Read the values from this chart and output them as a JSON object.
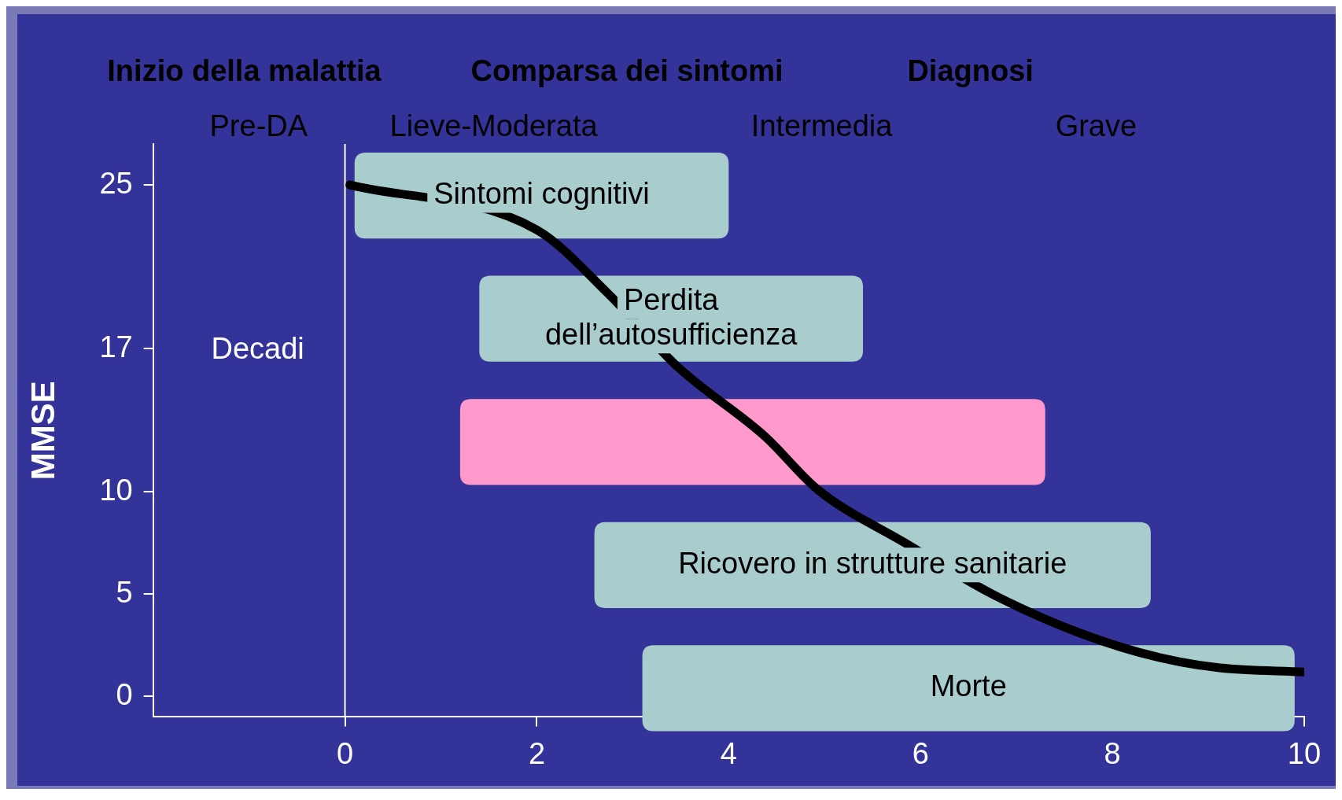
{
  "chart_data": {
    "type": "line",
    "ylabel": "MMSE",
    "xlim": [
      -2,
      10
    ],
    "xticks": [
      0,
      2,
      4,
      6,
      8,
      10
    ],
    "ylim": [
      -1,
      27
    ],
    "yticks": [
      0,
      5,
      10,
      17,
      25
    ],
    "grid": false,
    "legend": false,
    "marker": "none",
    "line_style": "solid",
    "series": [
      {
        "color": "#000000",
        "x": [
          0.05,
          2,
          2.74,
          3.47,
          4.38,
          4.93,
          5.84,
          6.75,
          7.66,
          8.49,
          9.12,
          10
        ],
        "values": [
          25,
          22.8,
          19.7,
          16.1,
          12.7,
          10.1,
          7.5,
          5,
          3.1,
          1.9,
          1.4,
          1.2
        ]
      }
    ],
    "ref_lines": [
      {
        "axis": "x",
        "value": 0,
        "color": "#ffffff"
      }
    ],
    "bands": [
      {
        "axis": "x",
        "from": 0.1,
        "to": 4,
        "label": "Sintomi cognitivi",
        "color": "#a9cccd"
      },
      {
        "axis": "x",
        "from": 1.4,
        "to": 5.4,
        "label": "Perdita dell’autosufficienza",
        "color": "#a9cccd"
      },
      {
        "axis": "x",
        "from": 1.2,
        "to": 7.3,
        "color": "#ff99cc"
      },
      {
        "axis": "x",
        "from": 2.6,
        "to": 8.4,
        "label": "Ricovero in strutture sanitarie",
        "color": "#a9cccd"
      },
      {
        "axis": "x",
        "from": 3.1,
        "to": 9.9,
        "label": "Morte",
        "color": "#a9cccd"
      }
    ],
    "annotations": [
      "Inizio della malattia",
      "Comparsa dei sintomi",
      "Diagnosi",
      "Pre-DA",
      "Lieve-Moderata",
      "Intermedia",
      "Grave",
      "Decadi"
    ]
  }
}
